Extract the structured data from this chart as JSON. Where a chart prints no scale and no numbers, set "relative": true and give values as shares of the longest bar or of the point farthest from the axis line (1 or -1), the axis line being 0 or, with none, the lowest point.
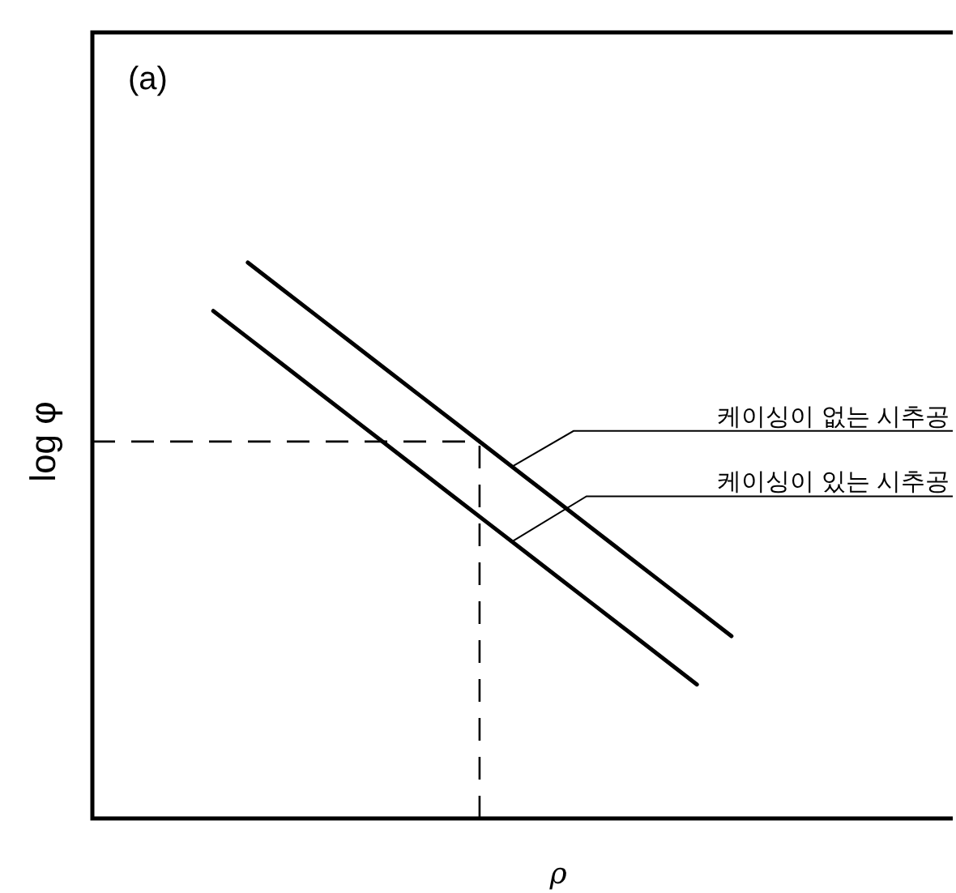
{
  "chart_data": {
    "type": "line",
    "relative": true,
    "xlabel": "ρ",
    "ylabel": "log φ",
    "annotations": [
      "(a)"
    ],
    "line_style": "solid",
    "marker": "none",
    "categories": [
      null,
      null,
      null,
      null,
      null,
      null,
      null,
      null,
      null,
      null,
      null,
      null,
      null,
      null,
      null,
      null,
      null,
      null,
      null,
      null,
      null,
      null,
      null,
      null,
      null
    ],
    "series": [
      {
        "name": "케이싱이 없는 시추공",
        "color": "#000000",
        "values": [
          null,
          null,
          null,
          null,
          1,
          0.952,
          0.904,
          0.856,
          0.808,
          0.76,
          0.712,
          0.664,
          0.616,
          0.568,
          0.52,
          0.472,
          0.424,
          0.376,
          0.328,
          null,
          null,
          null,
          null,
          null,
          null
        ]
      },
      {
        "name": "케이싱이 있는 시추공",
        "color": "#000000",
        "values": [
          null,
          null,
          null,
          0.913,
          0.865,
          0.817,
          0.769,
          0.721,
          0.673,
          0.625,
          0.577,
          0.529,
          0.481,
          0.433,
          0.385,
          0.337,
          0.289,
          0.241,
          null,
          null,
          null,
          null,
          null,
          null,
          null
        ]
      }
    ],
    "ref_lines": [
      {
        "axis": "y",
        "value": 0.678,
        "line_style": "dashed",
        "color": "#000000"
      }
    ]
  }
}
